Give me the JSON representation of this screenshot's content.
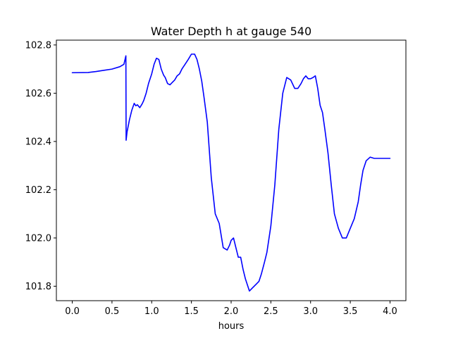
{
  "chart_data": {
    "type": "line",
    "title": "Water Depth h at gauge 540",
    "xlabel": "hours",
    "ylabel": "",
    "xlim": [
      -0.2,
      4.2
    ],
    "ylim": [
      101.74,
      102.82
    ],
    "grid": false,
    "x_ticks": [
      0.0,
      0.5,
      1.0,
      1.5,
      2.0,
      2.5,
      3.0,
      3.5,
      4.0
    ],
    "x_tick_labels": [
      "0.0",
      "0.5",
      "1.0",
      "1.5",
      "2.0",
      "2.5",
      "3.0",
      "3.5",
      "4.0"
    ],
    "y_ticks": [
      101.8,
      102.0,
      102.2,
      102.4,
      102.6,
      102.8
    ],
    "y_tick_labels": [
      "101.8",
      "102.0",
      "102.2",
      "102.4",
      "102.6",
      "102.8"
    ],
    "series": [
      {
        "color": "#0000ff",
        "x": [
          0.0,
          0.2,
          0.3,
          0.4,
          0.5,
          0.6,
          0.65,
          0.675,
          0.678,
          0.69,
          0.72,
          0.75,
          0.78,
          0.8,
          0.82,
          0.85,
          0.88,
          0.9,
          0.93,
          0.96,
          1.0,
          1.03,
          1.06,
          1.09,
          1.12,
          1.15,
          1.17,
          1.2,
          1.23,
          1.26,
          1.29,
          1.32,
          1.35,
          1.38,
          1.42,
          1.46,
          1.5,
          1.54,
          1.57,
          1.6,
          1.63,
          1.66,
          1.7,
          1.75,
          1.8,
          1.85,
          1.9,
          1.95,
          1.98,
          2.0,
          2.03,
          2.06,
          2.09,
          2.12,
          2.15,
          2.18,
          2.2,
          2.23,
          2.26,
          2.29,
          2.32,
          2.35,
          2.38,
          2.42,
          2.45,
          2.5,
          2.55,
          2.6,
          2.65,
          2.7,
          2.75,
          2.8,
          2.84,
          2.88,
          2.91,
          2.94,
          2.97,
          3.0,
          3.03,
          3.06,
          3.09,
          3.12,
          3.15,
          3.18,
          3.22,
          3.26,
          3.3,
          3.35,
          3.4,
          3.45,
          3.5,
          3.55,
          3.6,
          3.63,
          3.66,
          3.7,
          3.75,
          3.8,
          3.85,
          3.9,
          3.93,
          3.96,
          4.0
        ],
        "values": [
          102.685,
          102.686,
          102.69,
          102.695,
          102.7,
          102.71,
          102.72,
          102.755,
          102.405,
          102.44,
          102.49,
          102.53,
          102.558,
          102.548,
          102.552,
          102.54,
          102.556,
          102.57,
          102.6,
          102.64,
          102.68,
          102.72,
          102.745,
          102.74,
          102.7,
          102.675,
          102.665,
          102.64,
          102.635,
          102.645,
          102.655,
          102.672,
          102.68,
          102.7,
          102.72,
          102.74,
          102.762,
          102.762,
          102.74,
          102.7,
          102.65,
          102.58,
          102.48,
          102.25,
          102.1,
          102.06,
          101.96,
          101.95,
          101.97,
          101.99,
          102.0,
          101.96,
          101.92,
          101.92,
          101.87,
          101.83,
          101.81,
          101.78,
          101.79,
          101.8,
          101.81,
          101.82,
          101.85,
          101.9,
          101.94,
          102.05,
          102.22,
          102.45,
          102.6,
          102.665,
          102.655,
          102.62,
          102.62,
          102.64,
          102.66,
          102.672,
          102.66,
          102.66,
          102.665,
          102.672,
          102.62,
          102.55,
          102.52,
          102.45,
          102.35,
          102.22,
          102.1,
          102.04,
          102.0,
          102.0,
          102.04,
          102.08,
          102.15,
          102.22,
          102.28,
          102.32,
          102.335,
          102.33,
          102.33,
          102.33,
          102.33,
          102.33,
          102.33
        ]
      }
    ]
  }
}
